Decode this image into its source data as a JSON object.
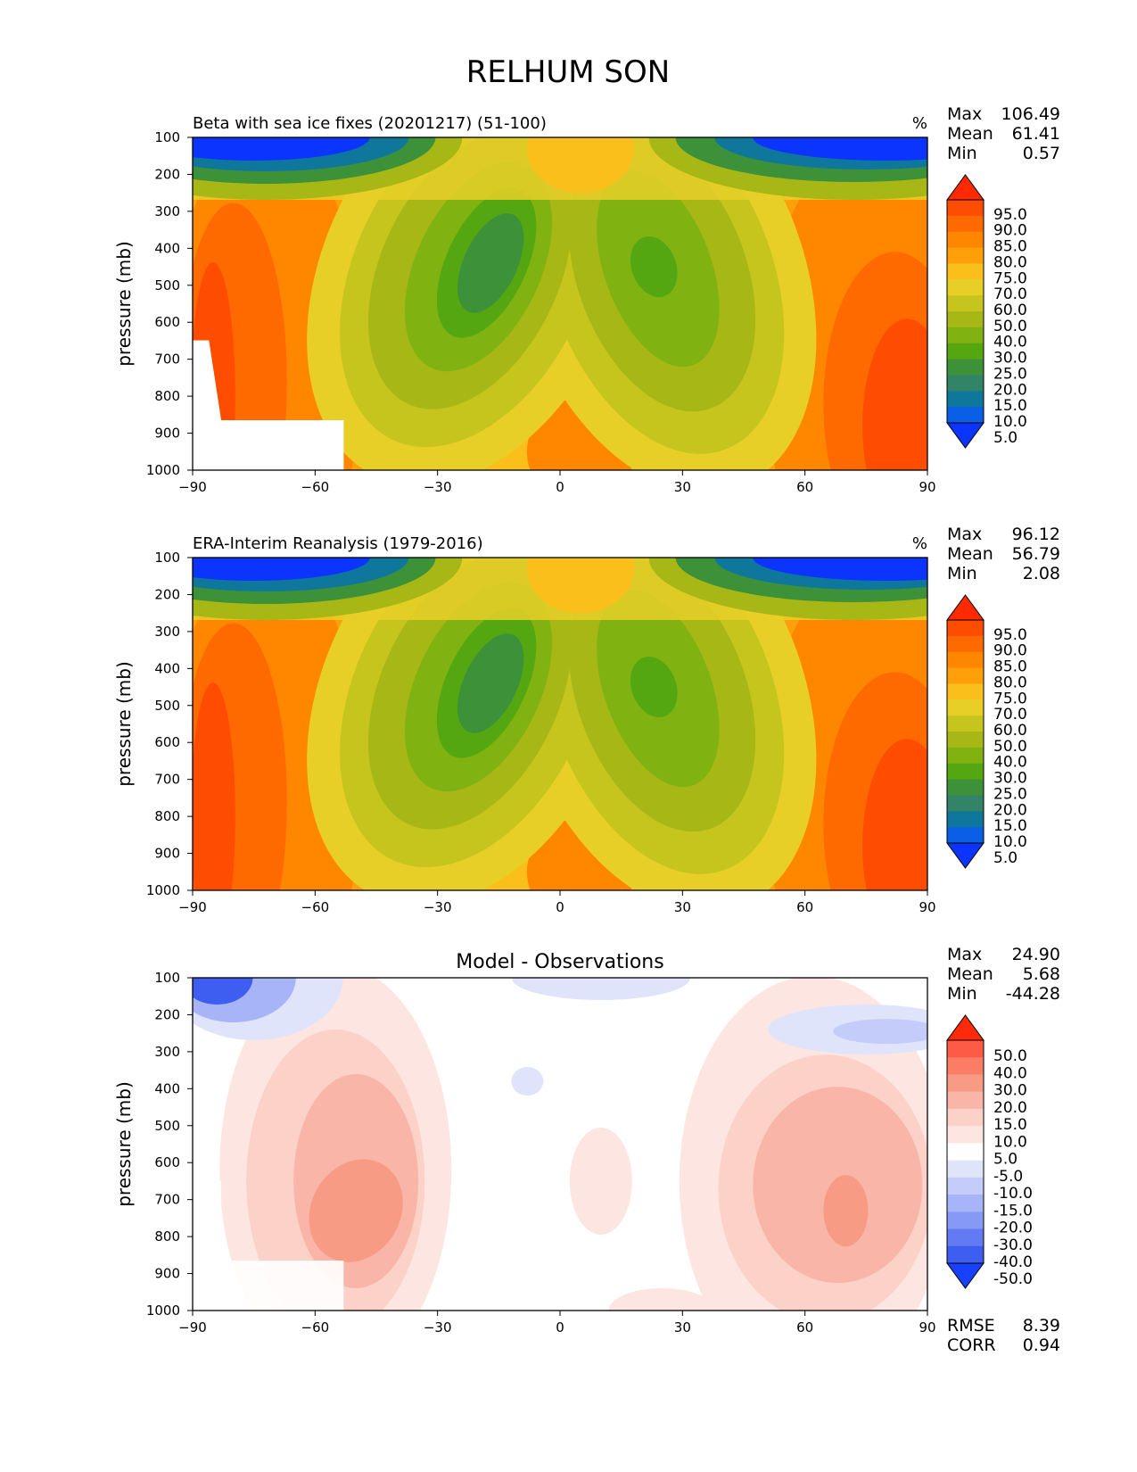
{
  "figure": {
    "title": "RELHUM SON"
  },
  "panels": [
    {
      "id": "model",
      "title_left": "Beta with sea ice fixes (20201217) (51-100)",
      "title_center": "",
      "units": "%",
      "stats": [
        {
          "label": "Max",
          "value": "106.49"
        },
        {
          "label": "Mean",
          "value": "61.41"
        },
        {
          "label": "Min",
          "value": "0.57"
        }
      ],
      "footer_stats": [],
      "colorbar": {
        "labels": [
          "95.0",
          "90.0",
          "85.0",
          "80.0",
          "75.0",
          "70.0",
          "60.0",
          "50.0",
          "40.0",
          "30.0",
          "25.0",
          "20.0",
          "15.0",
          "10.0",
          "5.0"
        ],
        "colors": [
          "#ff2a00",
          "#ff4d00",
          "#ff6a00",
          "#ff8700",
          "#ff9f0a",
          "#fbbf1c",
          "#e8cf28",
          "#c6c51d",
          "#a6b716",
          "#80b312",
          "#55a712",
          "#3d9139",
          "#338466",
          "#0f779b",
          "#0b5fe6",
          "#0b35ff"
        ]
      }
    },
    {
      "id": "obs",
      "title_left": "ERA-Interim Reanalysis (1979-2016)",
      "title_center": "",
      "units": "%",
      "stats": [
        {
          "label": "Max",
          "value": "96.12"
        },
        {
          "label": "Mean",
          "value": "56.79"
        },
        {
          "label": "Min",
          "value": "2.08"
        }
      ],
      "footer_stats": [],
      "colorbar": {
        "labels": [
          "95.0",
          "90.0",
          "85.0",
          "80.0",
          "75.0",
          "70.0",
          "60.0",
          "50.0",
          "40.0",
          "30.0",
          "25.0",
          "20.0",
          "15.0",
          "10.0",
          "5.0"
        ],
        "colors": [
          "#ff2a00",
          "#ff4d00",
          "#ff6a00",
          "#ff8700",
          "#ff9f0a",
          "#fbbf1c",
          "#e8cf28",
          "#c6c51d",
          "#a6b716",
          "#80b312",
          "#55a712",
          "#3d9139",
          "#338466",
          "#0f779b",
          "#0b5fe6",
          "#0b35ff"
        ]
      }
    },
    {
      "id": "diff",
      "title_left": "",
      "title_center": "Model - Observations",
      "units": "",
      "stats": [
        {
          "label": "Max",
          "value": "24.90"
        },
        {
          "label": "Mean",
          "value": "5.68"
        },
        {
          "label": "Min",
          "value": "-44.28"
        }
      ],
      "footer_stats": [
        {
          "label": "RMSE",
          "value": "8.39"
        },
        {
          "label": "CORR",
          "value": "0.94"
        }
      ],
      "colorbar": {
        "labels": [
          "50.0",
          "40.0",
          "30.0",
          "20.0",
          "15.0",
          "10.0",
          "5.0",
          "-5.0",
          "-10.0",
          "-15.0",
          "-20.0",
          "-30.0",
          "-40.0",
          "-50.0"
        ],
        "colors": [
          "#ff2a0a",
          "#ff5a45",
          "#fb7d66",
          "#f79b85",
          "#f9b6a8",
          "#fbd1c8",
          "#fde6e1",
          "#ffffff",
          "#dfe4fb",
          "#c4cdfa",
          "#a7b4f8",
          "#8699f5",
          "#627bf3",
          "#3e5ef2",
          "#1840ff"
        ]
      }
    }
  ],
  "chart_data": {
    "type": "heatmap",
    "x": {
      "label": "",
      "ticks": [
        -90,
        -60,
        -30,
        0,
        30,
        60,
        90
      ],
      "range": [
        -90,
        90
      ]
    },
    "y": {
      "label": "pressure (mb)",
      "ticks": [
        100,
        200,
        300,
        400,
        500,
        600,
        700,
        800,
        900,
        1000
      ],
      "range": [
        100,
        1000
      ],
      "inverted": true
    },
    "grid": false,
    "legend": "colorbar-right"
  }
}
